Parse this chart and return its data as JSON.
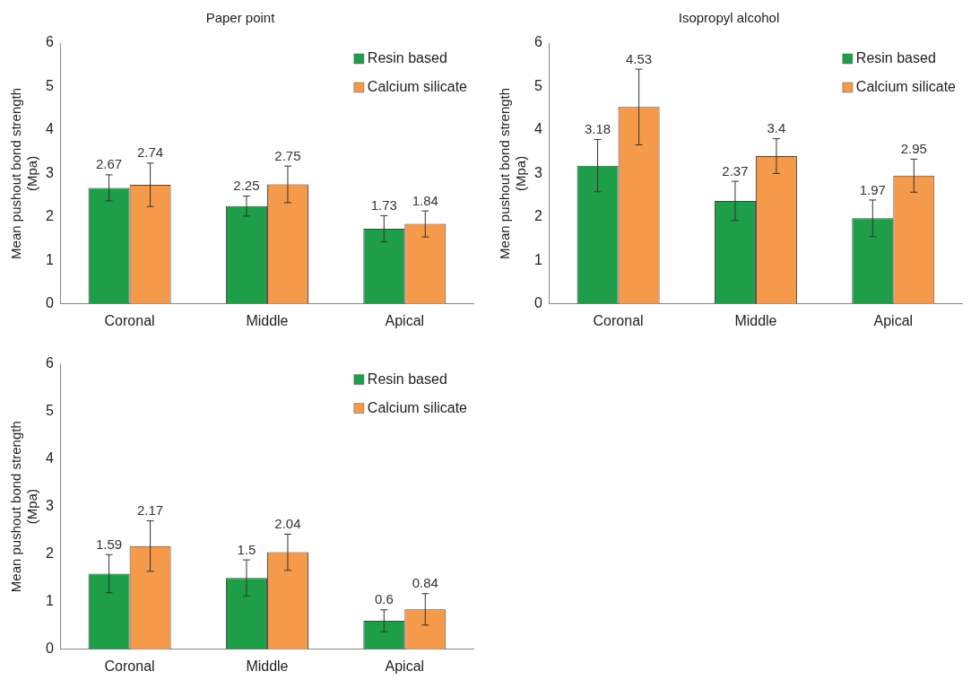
{
  "chart_data": [
    {
      "type": "bar",
      "title": "Paper point",
      "ylabel": "Mean pushout bond strength\n(Mpa)",
      "categories": [
        "Coronal",
        "Middle",
        "Apical"
      ],
      "series": [
        {
          "name": "Resin based",
          "color": "#1e9e48",
          "values": [
            2.67,
            2.25,
            1.73
          ],
          "errors": [
            0.3,
            0.23,
            0.3
          ]
        },
        {
          "name": "Calcium silicate",
          "color": "#f59a4a",
          "values": [
            2.74,
            2.75,
            1.84
          ],
          "errors": [
            0.5,
            0.42,
            0.3
          ]
        }
      ],
      "ylim": [
        0,
        6
      ],
      "yticks": [
        0,
        1,
        2,
        3,
        4,
        5,
        6
      ],
      "grid": false,
      "legend": "top right",
      "data_labels": true
    },
    {
      "type": "bar",
      "title": "Isopropyl alcohol",
      "ylabel": "Mean pushout bond strength\n(Mpa)",
      "categories": [
        "Coronal",
        "Middle",
        "Apical"
      ],
      "series": [
        {
          "name": "Resin based",
          "color": "#1e9e48",
          "values": [
            3.18,
            2.37,
            1.97
          ],
          "errors": [
            0.6,
            0.45,
            0.42
          ]
        },
        {
          "name": "Calcium silicate",
          "color": "#f59a4a",
          "values": [
            4.53,
            3.4,
            2.95
          ],
          "errors": [
            0.87,
            0.4,
            0.38
          ]
        }
      ],
      "ylim": [
        0,
        6
      ],
      "yticks": [
        0,
        1,
        2,
        3,
        4,
        5,
        6
      ],
      "grid": false,
      "legend": "top right",
      "data_labels": true
    },
    {
      "type": "bar",
      "ylabel": "Mean pushout bond strength\n(Mpa)",
      "categories": [
        "Coronal",
        "Middle",
        "Apical"
      ],
      "series": [
        {
          "name": "Resin based",
          "color": "#1e9e48",
          "values": [
            1.59,
            1.5,
            0.6
          ],
          "errors": [
            0.4,
            0.38,
            0.23
          ]
        },
        {
          "name": "Calcium silicate",
          "color": "#f59a4a",
          "values": [
            2.17,
            2.04,
            0.84
          ],
          "errors": [
            0.53,
            0.38,
            0.33
          ]
        }
      ],
      "ylim": [
        0,
        6
      ],
      "yticks": [
        0,
        1,
        2,
        3,
        4,
        5,
        6
      ],
      "grid": false,
      "legend": "top right",
      "data_labels": true
    }
  ]
}
